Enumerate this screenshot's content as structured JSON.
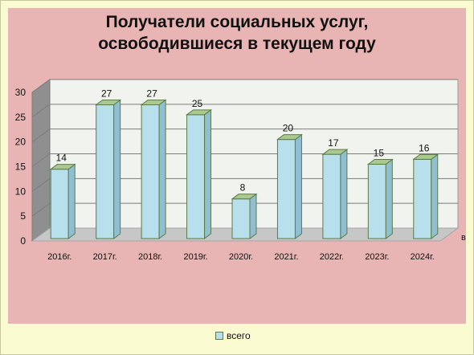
{
  "title_line1": "Получатели социальных услуг,",
  "title_line2": "освободившиеся в текущем году",
  "legend_label": "всего",
  "axis_suffix": "в",
  "colors": {
    "bar_front": "#b7dfec",
    "bar_side": "#8fbfd0",
    "bar_top": "#a9c98f",
    "bar_stroke": "#5d7b4a",
    "wall": "#f1f3ee",
    "floor": "#c7c7c7",
    "plot_background": "#e8b4b4",
    "slide_background": "#fbfbd2"
  },
  "chart_data": {
    "type": "bar",
    "title": "Получатели социальных услуг, освободившиеся в текущем году",
    "categories": [
      "2016г.",
      "2017г.",
      "2018г.",
      "2019г.",
      "2020г.",
      "2021г.",
      "2022г.",
      "2023г.",
      "2024г."
    ],
    "series": [
      {
        "name": "всего",
        "values": [
          14,
          27,
          27,
          25,
          8,
          20,
          17,
          15,
          16
        ]
      }
    ],
    "ylim": [
      0,
      30
    ],
    "yticks": [
      0,
      5,
      10,
      15,
      20,
      25,
      30
    ],
    "grid": true,
    "legend_position": "bottom",
    "three_d": true
  }
}
